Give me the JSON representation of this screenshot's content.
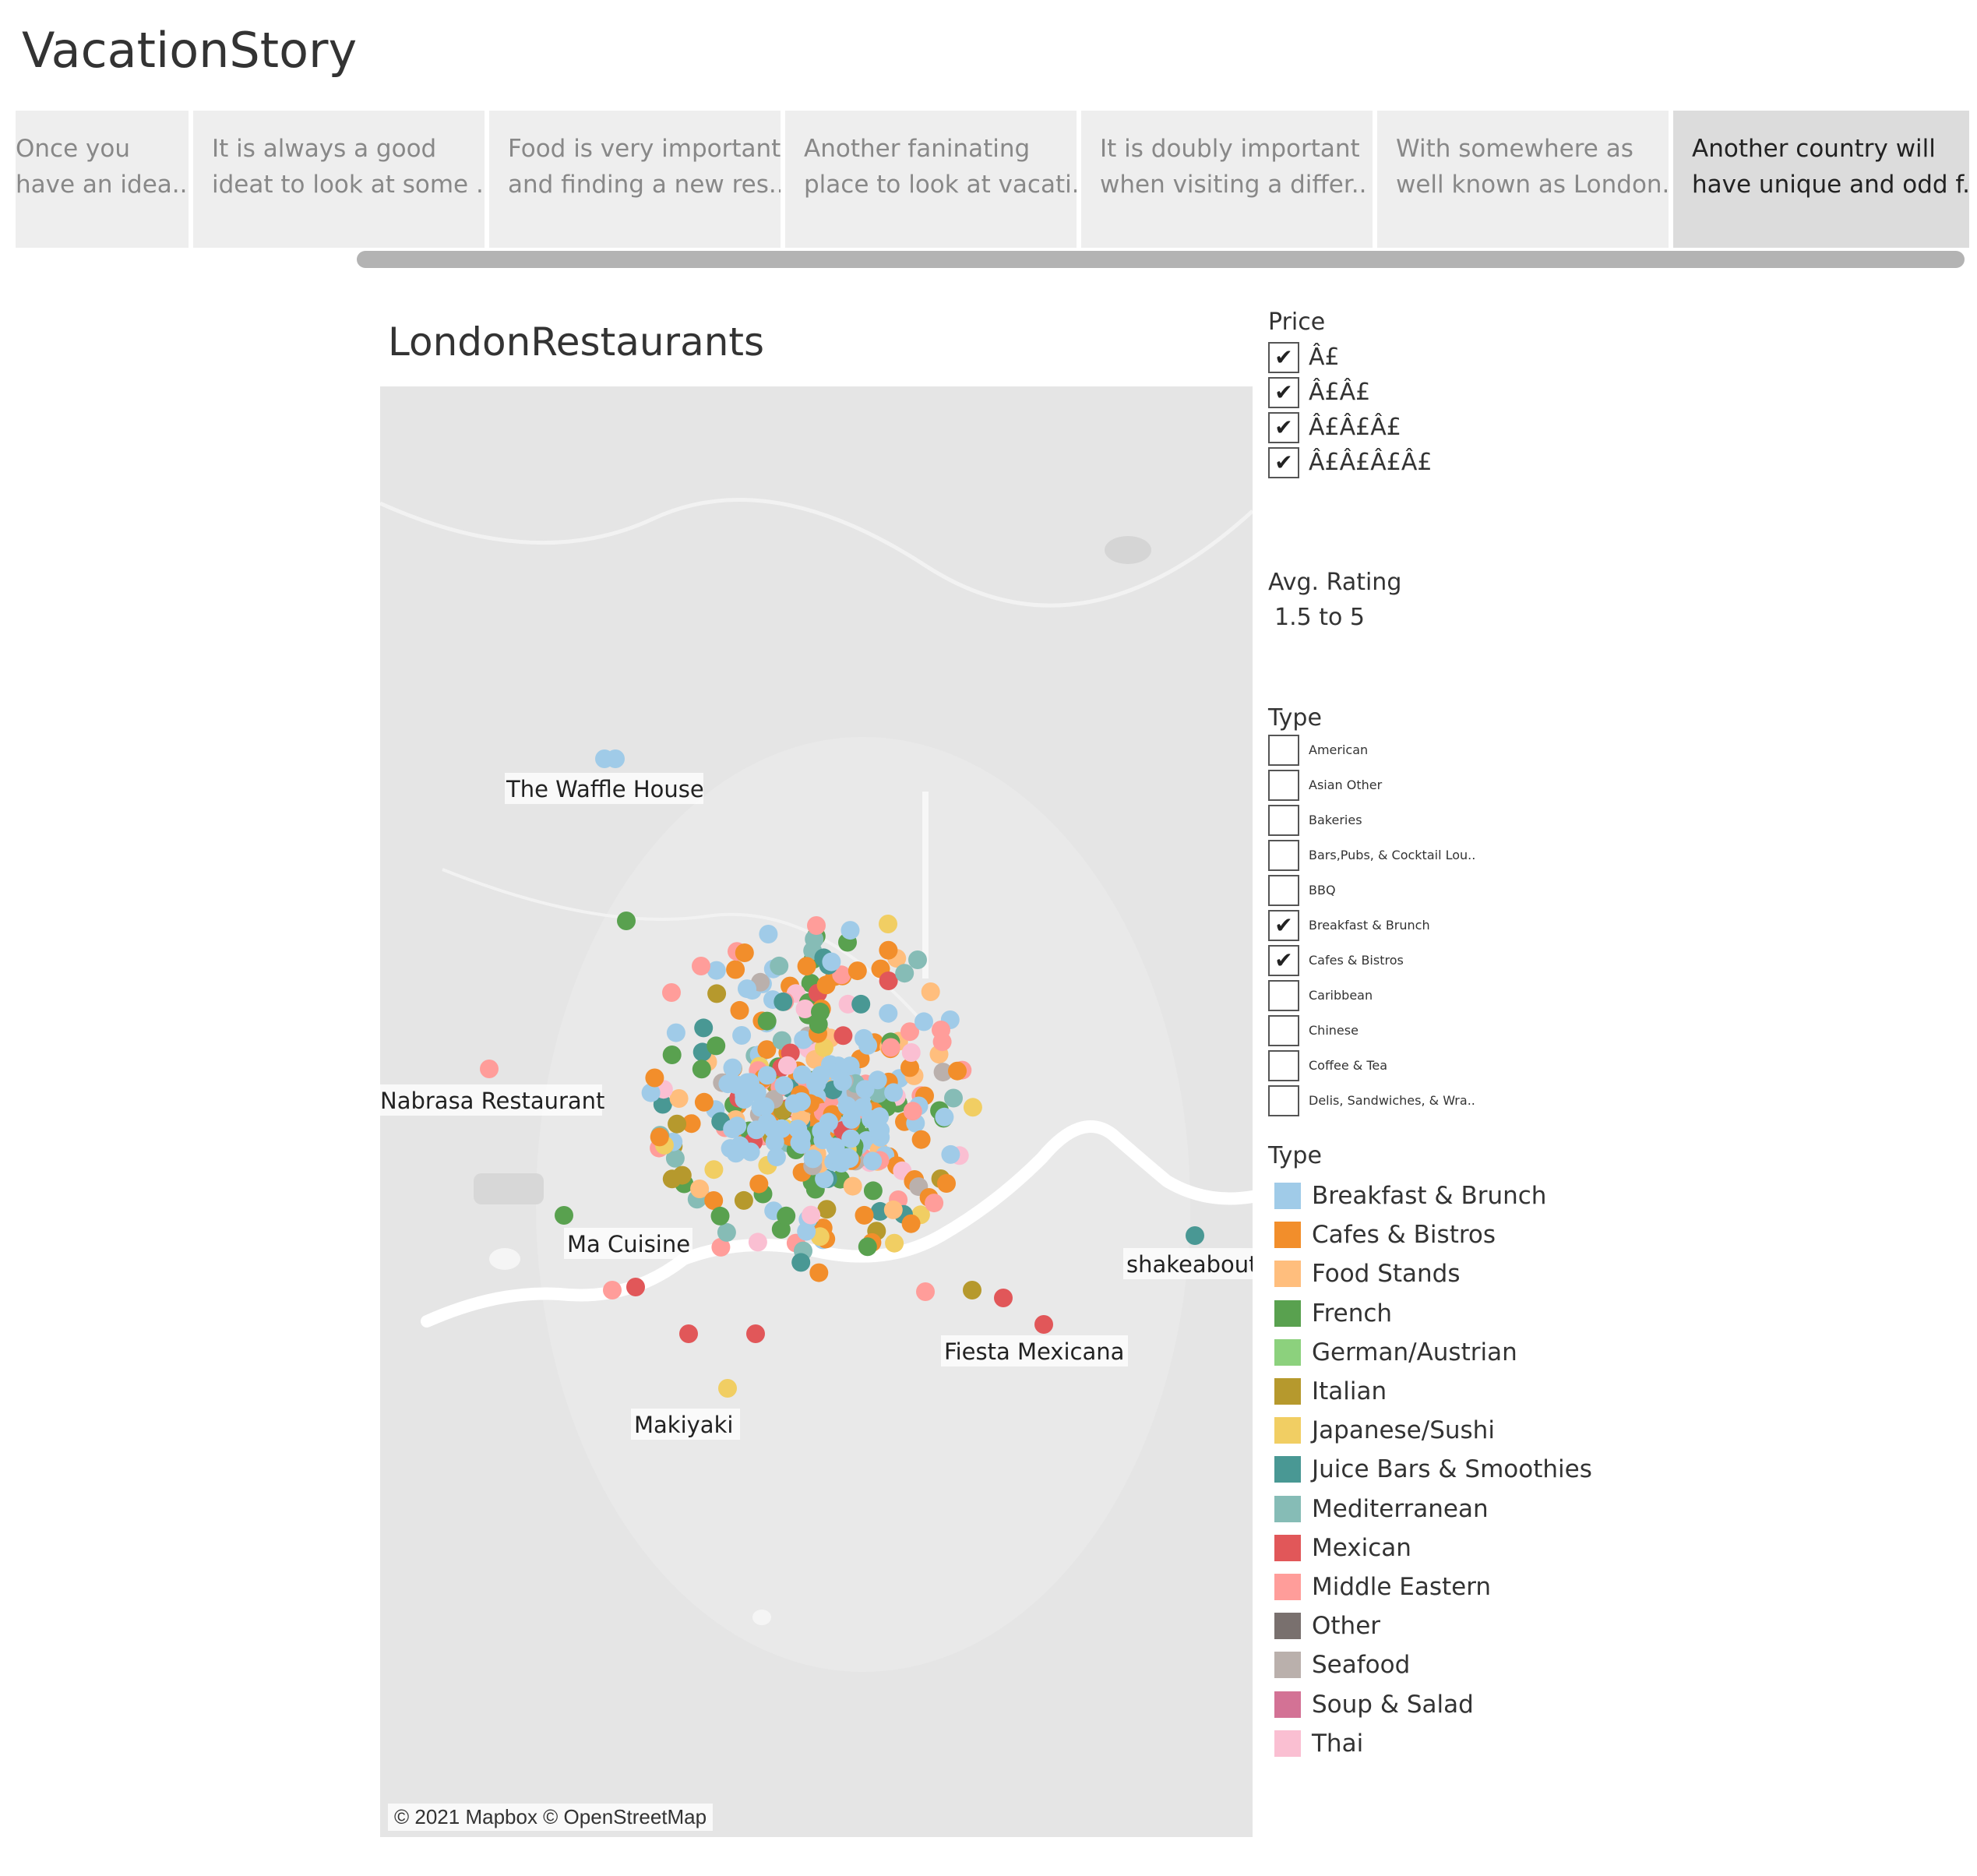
{
  "story": {
    "title": "VacationStory",
    "points": [
      {
        "line1": "Once you",
        "line2": "have an idea.."
      },
      {
        "line1": "It is always a good",
        "line2": "ideat to look at some .."
      },
      {
        "line1": "Food is very important",
        "line2": "and finding a new res.."
      },
      {
        "line1": "Another faninating",
        "line2": "place to look at vacati.."
      },
      {
        "line1": "It is doubly important",
        "line2": "when visiting a differ.."
      },
      {
        "line1": "With somewhere as",
        "line2": "well known as London.."
      },
      {
        "line1": "Another country will",
        "line2": "have unique and odd f.."
      }
    ],
    "active_index": 6
  },
  "map": {
    "title": "LondonRestaurants",
    "labels": {
      "waffle": "The Waffle House",
      "nabrasa": "Nabrasa Restaurant",
      "macuisine": "Ma Cuisine",
      "shakeabout": "shakeabout",
      "fiesta": "Fiesta Mexicana",
      "makiyaki": "Makiyaki"
    },
    "attribution": "© 2021 Mapbox © OpenStreetMap"
  },
  "filters": {
    "price": {
      "title": "Price",
      "items": [
        {
          "label": "Â£",
          "checked": true
        },
        {
          "label": "Â£Â£",
          "checked": true
        },
        {
          "label": "Â£Â£Â£",
          "checked": true
        },
        {
          "label": "Â£Â£Â£Â£",
          "checked": true
        }
      ]
    },
    "rating": {
      "title": "Avg. Rating",
      "value": "1.5 to 5"
    },
    "type": {
      "title": "Type",
      "items": [
        {
          "label": "American",
          "checked": false
        },
        {
          "label": "Asian Other",
          "checked": false
        },
        {
          "label": "Bakeries",
          "checked": false
        },
        {
          "label": "Bars,Pubs, & Cocktail Lou..",
          "checked": false
        },
        {
          "label": "BBQ",
          "checked": false
        },
        {
          "label": "Breakfast & Brunch",
          "checked": true
        },
        {
          "label": "Cafes & Bistros",
          "checked": true
        },
        {
          "label": "Caribbean",
          "checked": false
        },
        {
          "label": "Chinese",
          "checked": false
        },
        {
          "label": "Coffee & Tea",
          "checked": false
        },
        {
          "label": "Delis, Sandwiches, & Wra..",
          "checked": false
        }
      ]
    }
  },
  "legend": {
    "title": "Type",
    "items": [
      {
        "label": "Breakfast & Brunch",
        "color": "#a0cbe8"
      },
      {
        "label": "Cafes & Bistros",
        "color": "#f28e2b"
      },
      {
        "label": "Food Stands",
        "color": "#ffbe7d"
      },
      {
        "label": "French",
        "color": "#59a14f"
      },
      {
        "label": "German/Austrian",
        "color": "#8cd17d"
      },
      {
        "label": "Italian",
        "color": "#b6992d"
      },
      {
        "label": "Japanese/Sushi",
        "color": "#f1ce63"
      },
      {
        "label": "Juice Bars & Smoothies",
        "color": "#499894"
      },
      {
        "label": "Mediterranean",
        "color": "#86bcb6"
      },
      {
        "label": "Mexican",
        "color": "#e15759"
      },
      {
        "label": "Middle Eastern",
        "color": "#ff9d9a"
      },
      {
        "label": "Other",
        "color": "#79706e"
      },
      {
        "label": "Seafood",
        "color": "#bab0ac"
      },
      {
        "label": "Soup & Salad",
        "color": "#d37295"
      },
      {
        "label": "Thai",
        "color": "#fabfd2"
      }
    ]
  }
}
